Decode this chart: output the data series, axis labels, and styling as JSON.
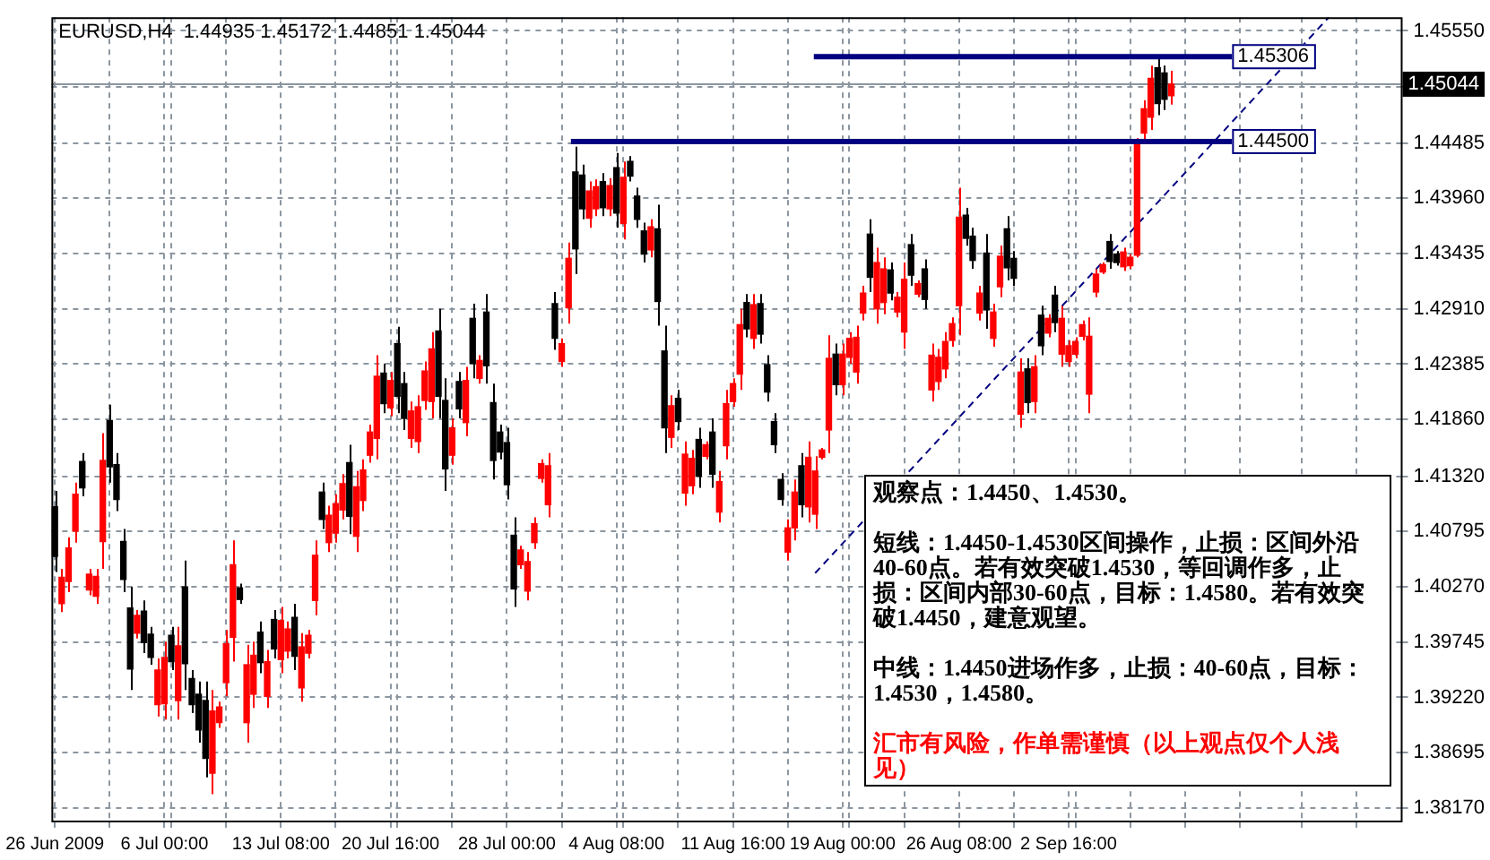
{
  "chart_data": {
    "type": "candlestick",
    "title": "EURUSD,H4  1.44935 1.45172 1.44851 1.45044",
    "categories": [
      "26 Jun 2009",
      null,
      null,
      null,
      null,
      null,
      null,
      null,
      null,
      null,
      null,
      null,
      null,
      null,
      null,
      null,
      "6 Jul 00:00",
      null,
      null,
      null,
      null,
      null,
      null,
      null,
      null,
      null,
      null,
      null,
      null,
      null,
      null,
      null,
      null,
      "13 Jul 08:00",
      null,
      null,
      null,
      null,
      null,
      null,
      null,
      null,
      null,
      null,
      null,
      null,
      null,
      null,
      null,
      "20 Jul 16:00",
      null,
      null,
      null,
      null,
      null,
      null,
      null,
      null,
      null,
      null,
      null,
      null,
      null,
      null,
      null,
      null,
      "28 Jul 00:00",
      null,
      null,
      null,
      null,
      null,
      null,
      null,
      null,
      null,
      null,
      null,
      null,
      null,
      null,
      null,
      "4 Aug 08:00",
      null,
      null,
      null,
      null,
      null,
      null,
      null,
      null,
      null,
      null,
      null,
      null,
      null,
      null,
      null,
      null,
      "11 Aug 16:00",
      null,
      null,
      null,
      null,
      null,
      null,
      null,
      null,
      null,
      null,
      null,
      null,
      null,
      null,
      null,
      "19 Aug 00:00",
      null,
      null,
      null,
      null,
      null,
      null,
      null,
      null,
      null,
      null,
      null,
      null,
      null,
      null,
      null,
      null,
      "26 Aug 08:00",
      null,
      null,
      null,
      null,
      null,
      null,
      null,
      null,
      null,
      null,
      null,
      null,
      null,
      null,
      null,
      "2 Sep 16:00",
      null,
      null,
      null,
      null,
      null,
      null,
      null,
      null,
      null,
      null,
      null,
      null,
      null,
      null,
      null,
      null,
      null,
      null,
      null,
      null,
      null,
      null,
      null,
      null,
      null,
      null,
      null,
      null,
      null,
      null,
      null,
      null,
      null,
      null,
      null,
      null,
      null,
      null,
      null,
      null,
      null,
      null,
      null,
      null,
      null,
      null,
      null,
      null
    ],
    "ohlc": [
      [
        1.4103,
        1.4118,
        1.4041,
        1.4056
      ],
      [
        1.4011,
        1.4044,
        1.4003,
        1.4036
      ],
      [
        1.4032,
        1.4074,
        1.4022,
        1.4064
      ],
      [
        1.408,
        1.4126,
        1.4069,
        1.4115
      ],
      [
        1.4146,
        1.4154,
        1.4113,
        1.4121
      ],
      [
        1.4024,
        1.4044,
        1.4019,
        1.4039
      ],
      [
        1.4018,
        1.4044,
        1.4011,
        1.4037
      ],
      [
        1.407,
        1.4173,
        1.4044,
        1.4147
      ],
      [
        1.4185,
        1.42,
        1.4126,
        1.4141
      ],
      [
        1.4143,
        1.4154,
        1.4099,
        1.411
      ],
      [
        1.407,
        1.4082,
        1.4022,
        1.4034
      ],
      [
        1.4007,
        1.4027,
        1.3929,
        1.3949
      ],
      [
        1.3983,
        1.4005,
        1.3978,
        1.4
      ],
      [
        1.4004,
        1.4014,
        1.3964,
        1.3974
      ],
      [
        1.3982,
        1.3989,
        1.3953,
        1.396
      ],
      [
        1.3915,
        1.3959,
        1.3904,
        1.3948
      ],
      [
        1.3916,
        1.3975,
        1.3901,
        1.396
      ],
      [
        1.3981,
        1.3989,
        1.3948,
        1.3956
      ],
      [
        1.3919,
        1.3989,
        1.3901,
        1.3971
      ],
      [
        1.4027,
        1.4052,
        1.3929,
        1.3954
      ],
      [
        1.394,
        1.3948,
        1.3907,
        1.3915
      ],
      [
        1.3925,
        1.3937,
        1.3879,
        1.3891
      ],
      [
        1.3919,
        1.3937,
        1.3846,
        1.3864
      ],
      [
        1.385,
        1.3929,
        1.383,
        1.3909
      ],
      [
        1.3898,
        1.3918,
        1.3893,
        1.3913
      ],
      [
        1.3936,
        1.3986,
        1.3923,
        1.3973
      ],
      [
        1.3979,
        1.4071,
        1.3956,
        1.4048
      ],
      [
        1.4026,
        1.403,
        1.4011,
        1.4015
      ],
      [
        1.3898,
        1.3972,
        1.3879,
        1.3953
      ],
      [
        1.3925,
        1.3975,
        1.3912,
        1.3962
      ],
      [
        1.3984,
        1.3994,
        1.3945,
        1.3955
      ],
      [
        1.3923,
        1.3967,
        1.3912,
        1.3956
      ],
      [
        1.3996,
        1.4005,
        1.3959,
        1.3968
      ],
      [
        1.3958,
        1.4008,
        1.3945,
        1.3995
      ],
      [
        1.3966,
        1.3994,
        1.3959,
        1.3987
      ],
      [
        1.3998,
        1.4011,
        1.3948,
        1.3961
      ],
      [
        1.3931,
        1.3983,
        1.3918,
        1.397
      ],
      [
        1.3964,
        1.3986,
        1.3959,
        1.3981
      ],
      [
        1.4014,
        1.4071,
        1.4,
        1.4057
      ],
      [
        1.4117,
        1.4126,
        1.4082,
        1.4091
      ],
      [
        1.4069,
        1.4104,
        1.406,
        1.4095
      ],
      [
        1.4078,
        1.4115,
        1.4069,
        1.4106
      ],
      [
        1.41,
        1.4134,
        1.4091,
        1.4125
      ],
      [
        1.4145,
        1.4162,
        1.4077,
        1.4094
      ],
      [
        1.4075,
        1.4137,
        1.406,
        1.4122
      ],
      [
        1.4109,
        1.4148,
        1.4099,
        1.4138
      ],
      [
        1.4152,
        1.4181,
        1.4145,
        1.4174
      ],
      [
        1.4168,
        1.4247,
        1.4148,
        1.4227
      ],
      [
        1.423,
        1.4239,
        1.4192,
        1.4201
      ],
      [
        1.4197,
        1.4231,
        1.4189,
        1.4223
      ],
      [
        1.4258,
        1.4274,
        1.4192,
        1.4208
      ],
      [
        1.422,
        1.4231,
        1.4176,
        1.4187
      ],
      [
        1.4168,
        1.4203,
        1.4159,
        1.4194
      ],
      [
        1.4165,
        1.4209,
        1.4154,
        1.4198
      ],
      [
        1.4204,
        1.4241,
        1.4195,
        1.4232
      ],
      [
        1.4203,
        1.4269,
        1.4187,
        1.4253
      ],
      [
        1.427,
        1.4291,
        1.4187,
        1.4208
      ],
      [
        1.4204,
        1.4225,
        1.4118,
        1.4139
      ],
      [
        1.4152,
        1.4187,
        1.4143,
        1.4178
      ],
      [
        1.4222,
        1.4231,
        1.4187,
        1.4196
      ],
      [
        1.4183,
        1.4236,
        1.417,
        1.4223
      ],
      [
        1.4282,
        1.4296,
        1.4225,
        1.4239
      ],
      [
        1.4225,
        1.4247,
        1.422,
        1.4242
      ],
      [
        1.4288,
        1.4305,
        1.422,
        1.4237
      ],
      [
        1.4202,
        1.422,
        1.4129,
        1.4147
      ],
      [
        1.4174,
        1.4181,
        1.4148,
        1.4155
      ],
      [
        1.4164,
        1.4178,
        1.411,
        1.4124
      ],
      [
        1.4076,
        1.4093,
        1.4008,
        1.4025
      ],
      [
        1.4048,
        1.4066,
        1.4044,
        1.4062
      ],
      [
        1.4023,
        1.406,
        1.4014,
        1.4051
      ],
      [
        1.4069,
        1.4093,
        1.4063,
        1.4087
      ],
      [
        1.413,
        1.4148,
        1.4126,
        1.4144
      ],
      [
        1.4105,
        1.4154,
        1.4093,
        1.4142
      ],
      [
        1.4296,
        1.4307,
        1.4252,
        1.4263
      ],
      [
        1.4241,
        1.4263,
        1.4236,
        1.4258
      ],
      [
        1.4292,
        1.4354,
        1.4277,
        1.4339
      ],
      [
        1.4421,
        1.4445,
        1.4324,
        1.4348
      ],
      [
        1.4418,
        1.4428,
        1.4376,
        1.4386
      ],
      [
        1.4377,
        1.4412,
        1.4368,
        1.4403
      ],
      [
        1.4386,
        1.4414,
        1.4379,
        1.4407
      ],
      [
        1.4412,
        1.442,
        1.4379,
        1.4387
      ],
      [
        1.4386,
        1.4415,
        1.4379,
        1.4408
      ],
      [
        1.4425,
        1.4439,
        1.4368,
        1.4382
      ],
      [
        1.4372,
        1.4431,
        1.4357,
        1.4416
      ],
      [
        1.4431,
        1.4436,
        1.4412,
        1.4417
      ],
      [
        1.4398,
        1.4406,
        1.4368,
        1.4376
      ],
      [
        1.4365,
        1.4373,
        1.4335,
        1.4343
      ],
      [
        1.4347,
        1.4376,
        1.434,
        1.4369
      ],
      [
        1.4367,
        1.439,
        1.4275,
        1.4298
      ],
      [
        1.4251,
        1.4275,
        1.4154,
        1.4178
      ],
      [
        1.4169,
        1.4209,
        1.4159,
        1.4199
      ],
      [
        1.4206,
        1.4214,
        1.4176,
        1.4184
      ],
      [
        1.4116,
        1.4165,
        1.4104,
        1.4153
      ],
      [
        1.4123,
        1.4157,
        1.4115,
        1.4149
      ],
      [
        1.4167,
        1.4178,
        1.4121,
        1.4132
      ],
      [
        1.4151,
        1.4165,
        1.4148,
        1.4162
      ],
      [
        1.4174,
        1.4187,
        1.4121,
        1.4134
      ],
      [
        1.4098,
        1.4137,
        1.4088,
        1.4127
      ],
      [
        1.4161,
        1.4214,
        1.4148,
        1.4201
      ],
      [
        1.4203,
        1.4225,
        1.4198,
        1.422
      ],
      [
        1.4229,
        1.4291,
        1.4214,
        1.4276
      ],
      [
        1.4297,
        1.4305,
        1.4264,
        1.4272
      ],
      [
        1.4263,
        1.4305,
        1.4253,
        1.4295
      ],
      [
        1.4296,
        1.4305,
        1.4258,
        1.4267
      ],
      [
        1.4238,
        1.4247,
        1.4203,
        1.4212
      ],
      [
        1.4184,
        1.4192,
        1.4154,
        1.4162
      ],
      [
        1.4129,
        1.4135,
        1.4104,
        1.411
      ],
      [
        1.406,
        1.4091,
        1.4052,
        1.4083
      ],
      [
        1.4083,
        1.4129,
        1.4071,
        1.4117
      ],
      [
        1.4142,
        1.4154,
        1.4093,
        1.4105
      ],
      [
        1.4103,
        1.4165,
        1.4088,
        1.415
      ],
      [
        1.4096,
        1.4151,
        1.4082,
        1.4137
      ],
      [
        1.415,
        1.4159,
        1.4148,
        1.4157
      ],
      [
        1.4176,
        1.4266,
        1.4154,
        1.4244
      ],
      [
        1.4248,
        1.4258,
        1.4209,
        1.4219
      ],
      [
        1.4219,
        1.4258,
        1.4209,
        1.4248
      ],
      [
        1.4245,
        1.4269,
        1.4239,
        1.4263
      ],
      [
        1.4231,
        1.4275,
        1.422,
        1.4264
      ],
      [
        1.4287,
        1.4313,
        1.428,
        1.4306
      ],
      [
        1.4362,
        1.4376,
        1.4307,
        1.4321
      ],
      [
        1.4291,
        1.4349,
        1.4277,
        1.4335
      ],
      [
        1.4297,
        1.434,
        1.4286,
        1.4329
      ],
      [
        1.4328,
        1.4335,
        1.4299,
        1.4306
      ],
      [
        1.4288,
        1.4307,
        1.4283,
        1.4302
      ],
      [
        1.4269,
        1.4335,
        1.4253,
        1.4319
      ],
      [
        1.4352,
        1.4362,
        1.4313,
        1.4323
      ],
      [
        1.4305,
        1.4318,
        1.4302,
        1.4315
      ],
      [
        1.4329,
        1.4338,
        1.4291,
        1.43
      ],
      [
        1.4214,
        1.4258,
        1.4203,
        1.4247
      ],
      [
        1.4222,
        1.4253,
        1.4214,
        1.4245
      ],
      [
        1.4234,
        1.4269,
        1.4225,
        1.426
      ],
      [
        1.4261,
        1.4283,
        1.4255,
        1.4277
      ],
      [
        1.4294,
        1.4406,
        1.4266,
        1.4378
      ],
      [
        1.438,
        1.4387,
        1.4351,
        1.4358
      ],
      [
        1.436,
        1.4368,
        1.4329,
        1.4337
      ],
      [
        1.4287,
        1.4313,
        1.428,
        1.4306
      ],
      [
        1.4344,
        1.4362,
        1.4272,
        1.429
      ],
      [
        1.4263,
        1.4296,
        1.4255,
        1.4288
      ],
      [
        1.4312,
        1.4351,
        1.4302,
        1.4341
      ],
      [
        1.4367,
        1.4379,
        1.4318,
        1.433
      ],
      [
        1.4339,
        1.4346,
        1.4313,
        1.432
      ],
      [
        1.4191,
        1.4244,
        1.4178,
        1.4231
      ],
      [
        1.4234,
        1.4244,
        1.4192,
        1.4202
      ],
      [
        1.4203,
        1.4247,
        1.4192,
        1.4236
      ],
      [
        1.4285,
        1.4294,
        1.4247,
        1.4256
      ],
      [
        1.4268,
        1.4286,
        1.4264,
        1.4282
      ],
      [
        1.4304,
        1.4313,
        1.4269,
        1.4278
      ],
      [
        1.4248,
        1.4294,
        1.4236,
        1.4282
      ],
      [
        1.4241,
        1.4261,
        1.4236,
        1.4256
      ],
      [
        1.4248,
        1.4264,
        1.4244,
        1.426
      ],
      [
        1.4265,
        1.428,
        1.4261,
        1.4276
      ],
      [
        1.421,
        1.4283,
        1.4192,
        1.4265
      ],
      [
        1.4307,
        1.4329,
        1.4302,
        1.4324
      ],
      [
        1.4326,
        1.4335,
        1.4324,
        1.4333
      ],
      [
        1.4355,
        1.4362,
        1.4329,
        1.4336
      ],
      [
        1.4343,
        1.4346,
        1.4332,
        1.4335
      ],
      [
        1.4331,
        1.4349,
        1.4327,
        1.4345
      ],
      [
        1.4332,
        1.4343,
        1.4329,
        1.434
      ],
      [
        1.4342,
        1.4453,
        1.434,
        1.445
      ],
      [
        1.4458,
        1.4489,
        1.445,
        1.4481
      ],
      [
        1.4473,
        1.4522,
        1.4461,
        1.451
      ],
      [
        1.452,
        1.4531,
        1.4475,
        1.4486
      ],
      [
        1.4515,
        1.4522,
        1.448,
        1.449
      ],
      [
        1.44935,
        1.45172,
        1.44851,
        1.45044
      ],
      null,
      null,
      null,
      null,
      null,
      null,
      null,
      null,
      null,
      null,
      null,
      null,
      null,
      null,
      null,
      null,
      null,
      null,
      null,
      null,
      null,
      null,
      null,
      null,
      null,
      null,
      null,
      null,
      null,
      null,
      null,
      null,
      null
    ],
    "colors": [
      "#000000",
      "#ff0000",
      "#ff0000",
      "#ff0000",
      "#000000",
      "#ff0000",
      "#ff0000",
      "#ff0000",
      "#000000",
      "#000000",
      "#000000",
      "#000000",
      "#ff0000",
      "#000000",
      "#000000",
      "#ff0000",
      "#ff0000",
      "#000000",
      "#ff0000",
      "#000000",
      "#000000",
      "#000000",
      "#000000",
      "#ff0000",
      "#ff0000",
      "#ff0000",
      "#ff0000",
      "#000000",
      "#ff0000",
      "#ff0000",
      "#000000",
      "#ff0000",
      "#000000",
      "#ff0000",
      "#ff0000",
      "#000000",
      "#ff0000",
      "#ff0000",
      "#ff0000",
      "#000000",
      "#ff0000",
      "#ff0000",
      "#ff0000",
      "#000000",
      "#ff0000",
      "#ff0000",
      "#ff0000",
      "#ff0000",
      "#000000",
      "#ff0000",
      "#000000",
      "#000000",
      "#ff0000",
      "#ff0000",
      "#ff0000",
      "#ff0000",
      "#000000",
      "#000000",
      "#ff0000",
      "#000000",
      "#ff0000",
      "#000000",
      "#ff0000",
      "#000000",
      "#000000",
      "#000000",
      "#000000",
      "#000000",
      "#ff0000",
      "#ff0000",
      "#ff0000",
      "#ff0000",
      "#ff0000",
      "#000000",
      "#ff0000",
      "#ff0000",
      "#000000",
      "#000000",
      "#ff0000",
      "#ff0000",
      "#000000",
      "#ff0000",
      "#000000",
      "#ff0000",
      "#000000",
      "#000000",
      "#000000",
      "#ff0000",
      "#000000",
      "#000000",
      "#ff0000",
      "#000000",
      "#ff0000",
      "#ff0000",
      "#000000",
      "#ff0000",
      "#000000",
      "#ff0000",
      "#ff0000",
      "#ff0000",
      "#ff0000",
      "#000000",
      "#ff0000",
      "#000000",
      "#000000",
      "#000000",
      "#000000",
      "#ff0000",
      "#ff0000",
      "#000000",
      "#ff0000",
      "#ff0000",
      "#ff0000",
      "#ff0000",
      "#000000",
      "#ff0000",
      "#ff0000",
      "#ff0000",
      "#ff0000",
      "#000000",
      "#ff0000",
      "#ff0000",
      "#000000",
      "#ff0000",
      "#ff0000",
      "#000000",
      "#ff0000",
      "#000000",
      "#ff0000",
      "#ff0000",
      "#ff0000",
      "#ff0000",
      "#ff0000",
      "#000000",
      "#000000",
      "#ff0000",
      "#000000",
      "#ff0000",
      "#ff0000",
      "#000000",
      "#000000",
      "#ff0000",
      "#000000",
      "#ff0000",
      "#000000",
      "#ff0000",
      "#000000",
      "#ff0000",
      "#ff0000",
      "#ff0000",
      "#ff0000",
      "#ff0000",
      "#ff0000",
      "#ff0000",
      "#000000",
      "#000000",
      "#ff0000",
      "#ff0000",
      "#ff0000",
      "#ff0000",
      "#ff0000",
      "#000000",
      "#000000",
      "#ff0000",
      null,
      null,
      null,
      null,
      null,
      null,
      null,
      null,
      null,
      null,
      null,
      null,
      null,
      null,
      null,
      null,
      null,
      null,
      null,
      null,
      null,
      null,
      null,
      null,
      null,
      null,
      null,
      null,
      null,
      null,
      null,
      null,
      null
    ],
    "series": [
      {
        "type": "line",
        "color": "#000080",
        "line_style": "dashed",
        "marker": "none",
        "values": [
          null,
          null,
          null,
          null,
          null,
          null,
          null,
          null,
          null,
          null,
          null,
          null,
          null,
          null,
          null,
          null,
          null,
          null,
          null,
          null,
          null,
          null,
          null,
          null,
          null,
          null,
          null,
          null,
          null,
          null,
          null,
          null,
          null,
          null,
          null,
          null,
          null,
          null,
          null,
          null,
          null,
          null,
          null,
          null,
          null,
          null,
          null,
          null,
          null,
          null,
          null,
          null,
          null,
          null,
          null,
          null,
          null,
          null,
          null,
          null,
          null,
          null,
          null,
          null,
          null,
          null,
          null,
          null,
          null,
          null,
          null,
          null,
          null,
          null,
          null,
          null,
          null,
          null,
          null,
          null,
          null,
          null,
          null,
          null,
          null,
          null,
          null,
          null,
          null,
          null,
          null,
          null,
          null,
          null,
          null,
          null,
          null,
          null,
          null,
          null,
          null,
          null,
          null,
          null,
          null,
          null,
          null,
          null,
          null,
          null,
          null,
          1.404,
          null,
          null,
          null,
          null,
          null,
          null,
          null,
          null,
          null,
          null,
          null,
          null,
          null,
          null,
          null,
          null,
          null,
          null,
          null,
          null,
          null,
          null,
          null,
          null,
          null,
          null,
          null,
          null,
          null,
          null,
          null,
          null,
          null,
          null,
          null,
          null,
          null,
          null,
          null,
          null,
          null,
          null,
          null,
          null,
          null,
          null,
          null,
          null,
          null,
          null,
          null,
          null,
          null,
          null,
          null,
          null,
          null,
          null,
          null,
          null,
          null,
          null,
          null,
          null,
          null,
          null,
          null,
          null,
          null,
          null,
          null,
          null,
          null,
          null,
          1.4568,
          null,
          null,
          null,
          null,
          null,
          null,
          null,
          null,
          null,
          null
        ]
      }
    ],
    "ylim": [
      1.3805,
      1.4568
    ],
    "yticks": [
      {
        "value": 1.4555,
        "label": "1.45550"
      },
      {
        "value": 1.45018,
        "label": null
      },
      1.44485,
      {
        "value": 1.4396,
        "label": "1.43960"
      },
      1.43435,
      {
        "value": 1.4291,
        "label": "1.42910"
      },
      1.42385,
      {
        "value": 1.4186,
        "label": "1.41860"
      },
      {
        "value": 1.4132,
        "label": "1.41320"
      },
      1.40795,
      {
        "value": 1.4027,
        "label": "1.40270"
      },
      1.39745,
      {
        "value": 1.3922,
        "label": "1.39220"
      },
      1.38695,
      {
        "value": 1.3817,
        "label": "1.38170"
      }
    ],
    "ref_lines": [
      {
        "axis": "y",
        "value": 1.45306,
        "label": "1.45306",
        "color": "#000080"
      },
      {
        "axis": "y",
        "value": 1.445,
        "label": "1.44500",
        "color": "#000080"
      },
      {
        "axis": "y",
        "value": 1.45044,
        "label": "1.45044",
        "color": "#8c96a0"
      }
    ],
    "grid": true,
    "annotations": [
      "观察点：1.4450、1.4530。",
      "短线：1.4450-1.4530区间操作，止损：区间外沿40-60点。若有效突破1.4530，等回调作多，止损：区间内部30-60点，目标：1.4580。若有效突破1.4450，建意观望。",
      "中线：1.4450进场作多，止损：40-60点，目标：1.4530，1.4580。",
      "汇市有风险，作单需谨慎（以上观点仅个人浅见）"
    ]
  }
}
